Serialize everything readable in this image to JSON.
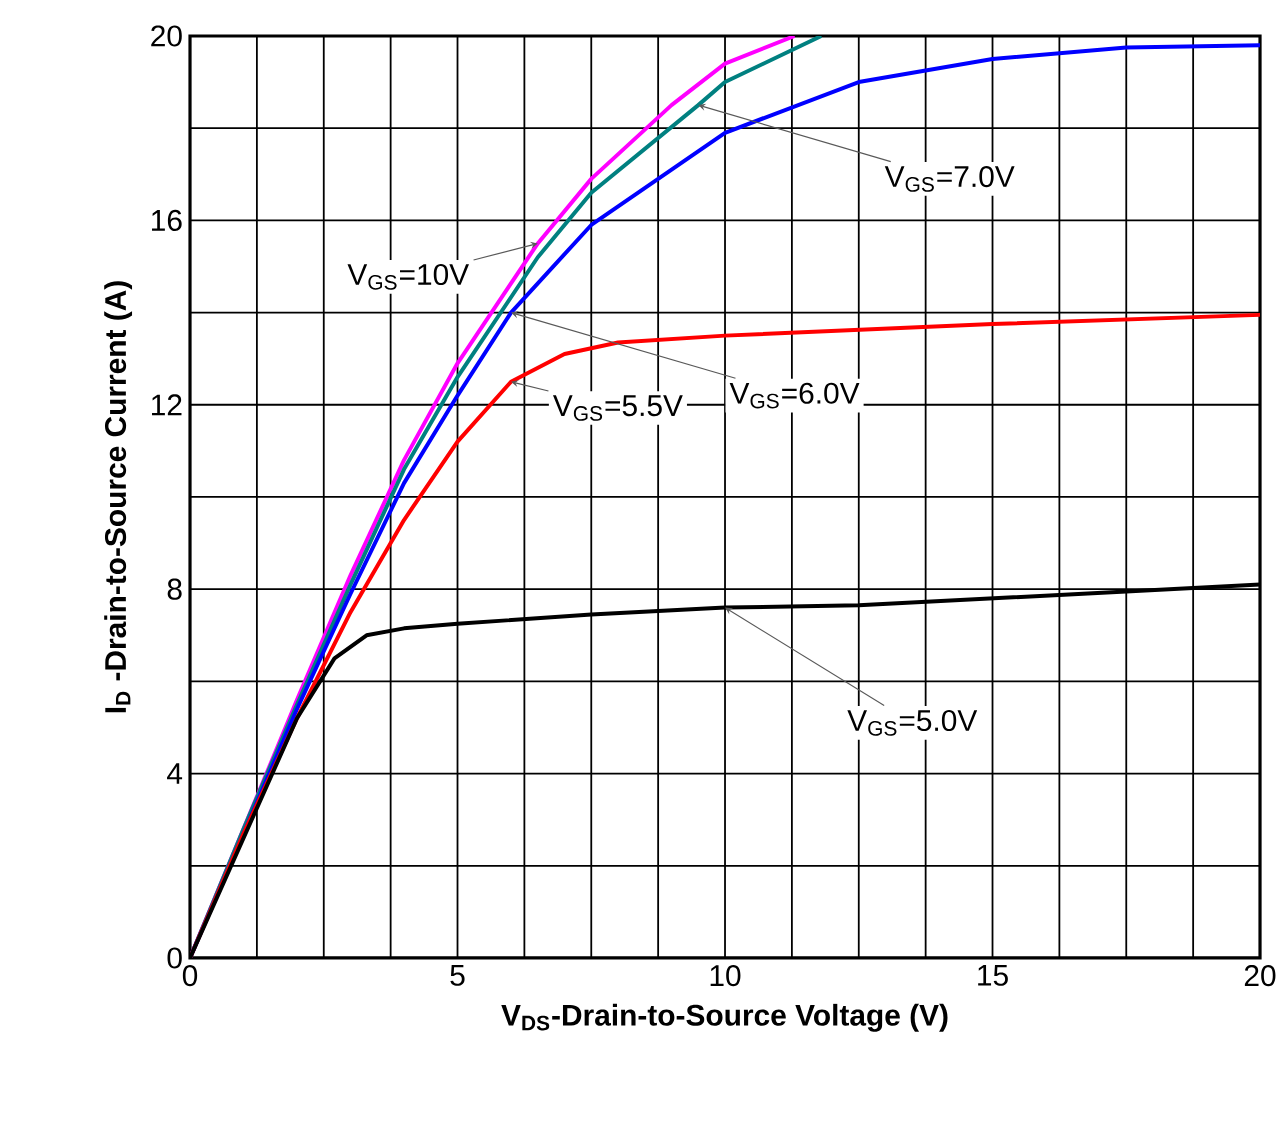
{
  "chart_data": {
    "type": "line",
    "xlabel": "V$_{DS}$-Drain-to-Source Voltage (V)",
    "ylabel": "I$_{D}$ -Drain-to-Source Current (A)",
    "xlim": [
      0,
      20
    ],
    "ylim": [
      0,
      20
    ],
    "xticks": [
      0,
      {
        "value": 1.25,
        "label": null
      },
      {
        "value": 2.5,
        "label": null
      },
      {
        "value": 3.75,
        "label": null
      },
      5,
      {
        "value": 6.25,
        "label": null
      },
      {
        "value": 7.5,
        "label": null
      },
      {
        "value": 8.75,
        "label": null
      },
      10,
      {
        "value": 11.25,
        "label": null
      },
      {
        "value": 12.5,
        "label": null
      },
      {
        "value": 13.75,
        "label": null
      },
      15,
      {
        "value": 16.25,
        "label": null
      },
      {
        "value": 17.5,
        "label": null
      },
      {
        "value": 18.75,
        "label": null
      },
      20
    ],
    "yticks": [
      0,
      {
        "value": 2,
        "label": null
      },
      4,
      {
        "value": 6,
        "label": null
      },
      8,
      {
        "value": 10,
        "label": null
      },
      12,
      {
        "value": 14,
        "label": null
      },
      16,
      {
        "value": 18,
        "label": null
      },
      20
    ],
    "grid": true,
    "legend": false,
    "marker": "none",
    "line_style": "solid",
    "series": [
      {
        "name": "V$_{GS}$=10V",
        "color": "#ff00ff",
        "x": [
          0,
          1,
          2,
          3,
          4,
          5,
          6.5,
          7.5,
          9,
          10,
          11.3
        ],
        "values": [
          0,
          2.8,
          5.6,
          8.3,
          10.8,
          12.9,
          15.5,
          16.9,
          18.5,
          19.4,
          20
        ]
      },
      {
        "name": "V$_{GS}$=7.0V",
        "color": "#008080",
        "x": [
          0,
          1,
          2,
          3,
          4,
          5,
          6.5,
          7.5,
          9.5,
          10,
          11.8
        ],
        "values": [
          0,
          2.8,
          5.5,
          8.1,
          10.6,
          12.6,
          15.2,
          16.6,
          18.5,
          19.0,
          20
        ]
      },
      {
        "name": "V$_{GS}$=6.0V",
        "color": "#0000ff",
        "x": [
          0,
          1,
          2,
          3,
          4,
          5,
          6,
          7.5,
          10,
          12.5,
          15,
          17.5,
          20
        ],
        "values": [
          0,
          2.7,
          5.4,
          7.9,
          10.3,
          12.2,
          14.0,
          15.9,
          17.9,
          19.0,
          19.5,
          19.75,
          19.8
        ]
      },
      {
        "name": "V$_{GS}$=5.5V",
        "color": "#ff0000",
        "x": [
          0,
          1,
          2,
          3,
          4,
          5,
          6,
          7,
          8,
          10,
          15,
          20
        ],
        "values": [
          0,
          2.7,
          5.2,
          7.5,
          9.5,
          11.2,
          12.5,
          13.1,
          13.35,
          13.5,
          13.75,
          13.95
        ]
      },
      {
        "name": "V$_{GS}$=5.0V",
        "color": "#000000",
        "x": [
          0,
          1,
          2,
          2.7,
          3.3,
          4,
          5,
          7.5,
          10,
          12.5,
          15,
          17.5,
          20
        ],
        "values": [
          0,
          2.6,
          5.2,
          6.5,
          7.0,
          7.15,
          7.25,
          7.45,
          7.6,
          7.65,
          7.8,
          7.95,
          8.1
        ]
      }
    ]
  }
}
